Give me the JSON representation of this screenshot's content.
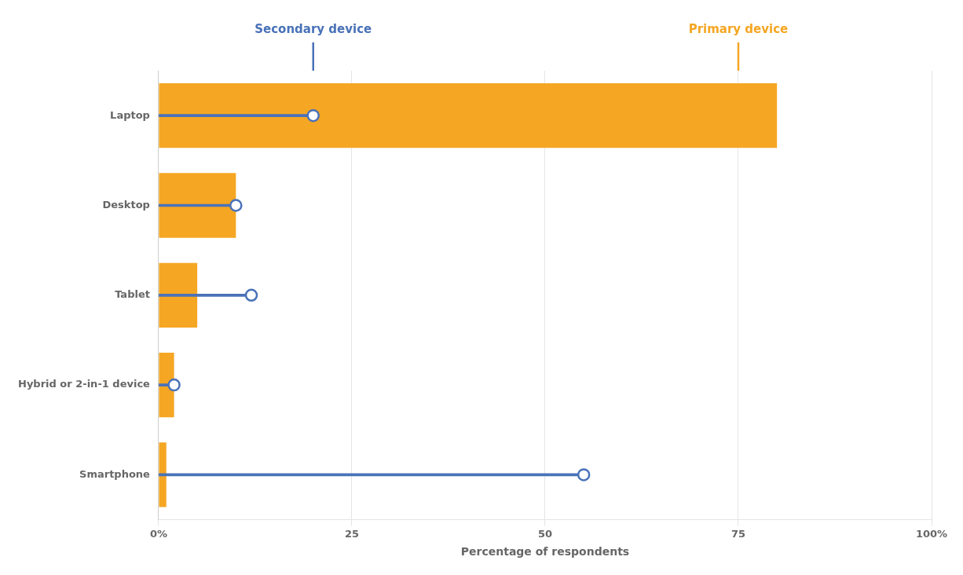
{
  "chart_data": {
    "type": "bar",
    "orientation": "horizontal",
    "categories": [
      "Laptop",
      "Desktop",
      "Tablet",
      "Hybrid or 2-in-1 device",
      "Smartphone"
    ],
    "series": [
      {
        "name": "Primary device",
        "type": "bar",
        "color": "#F5A623",
        "values": [
          80,
          10,
          5,
          2,
          1
        ]
      },
      {
        "name": "Secondary device",
        "type": "lollipop",
        "marker": "circle",
        "color": "#4972B8",
        "values": [
          20,
          10,
          12,
          2,
          55
        ]
      }
    ],
    "annotations": [
      {
        "text": "Secondary device",
        "x": 20,
        "color": "#4972B8"
      },
      {
        "text": "Primary device",
        "x": 75,
        "color": "#F5A623"
      }
    ],
    "xlabel": "Percentage of respondents",
    "xlim": [
      0,
      100
    ],
    "xticks": [
      {
        "value": 0,
        "label": "0%"
      },
      25,
      50,
      75,
      {
        "value": 100,
        "label": "100%"
      }
    ],
    "grid": true
  }
}
